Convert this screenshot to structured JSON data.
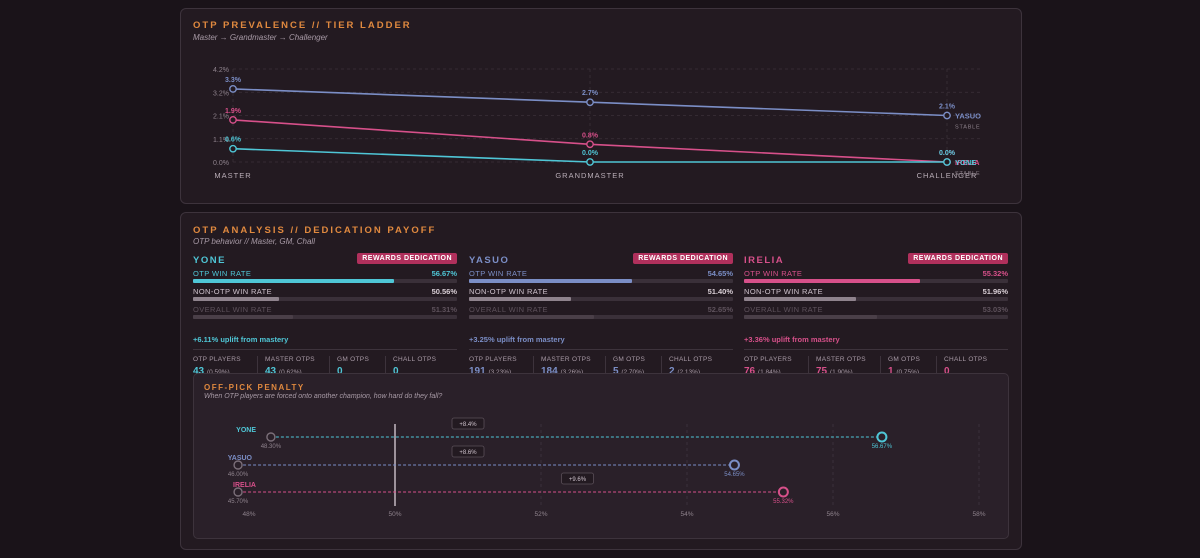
{
  "prevalence": {
    "title": "OTP PREVALENCE // TIER LADDER",
    "subtitle": "Master → Grandmaster → Challenger"
  },
  "analysis": {
    "title": "OTP ANALYSIS // DEDICATION PAYOFF",
    "subtitle": "OTP behavior // Master, GM, Chall",
    "row_labels": {
      "otp": "OTP WIN RATE",
      "non_otp": "NON-OTP WIN RATE",
      "overall": "OVERALL WIN RATE"
    },
    "stat_labels": [
      "OTP PLAYERS",
      "MASTER OTPS",
      "GM OTPS",
      "CHALL OTPS"
    ],
    "champions": [
      {
        "name": "YONE",
        "color": "#4fc6d6",
        "badge": "REWARDS DEDICATION",
        "otp_wr": "56.67%",
        "non_otp_wr": "50.56%",
        "overall_wr": "51.31%",
        "otp_value": 56.67,
        "non_otp_value": 50.56,
        "overall_value": 51.31,
        "uplift": "+6.11% uplift from mastery",
        "stats": [
          {
            "value": "43",
            "pct": "(0.59%)"
          },
          {
            "value": "43",
            "pct": "(0.62%)"
          },
          {
            "value": "0",
            "pct": ""
          },
          {
            "value": "0",
            "pct": ""
          }
        ]
      },
      {
        "name": "YASUO",
        "color": "#7b8ec6",
        "badge": "REWARDS DEDICATION",
        "otp_wr": "54.65%",
        "non_otp_wr": "51.40%",
        "overall_wr": "52.65%",
        "otp_value": 54.65,
        "non_otp_value": 51.4,
        "overall_value": 52.65,
        "uplift": "+3.25% uplift from mastery",
        "stats": [
          {
            "value": "191",
            "pct": "(3.23%)"
          },
          {
            "value": "184",
            "pct": "(3.26%)"
          },
          {
            "value": "5",
            "pct": "(2.70%)"
          },
          {
            "value": "2",
            "pct": "(2.13%)"
          }
        ]
      },
      {
        "name": "IRELIA",
        "color": "#d7508a",
        "badge": "REWARDS DEDICATION",
        "otp_wr": "55.32%",
        "non_otp_wr": "51.96%",
        "overall_wr": "53.03%",
        "otp_value": 55.32,
        "non_otp_value": 51.96,
        "overall_value": 53.03,
        "uplift": "+3.36% uplift from mastery",
        "stats": [
          {
            "value": "76",
            "pct": "(1.84%)"
          },
          {
            "value": "75",
            "pct": "(1.90%)"
          },
          {
            "value": "1",
            "pct": "(0.75%)"
          },
          {
            "value": "0",
            "pct": ""
          }
        ]
      }
    ]
  },
  "offpick": {
    "title": "OFF-PICK PENALTY",
    "subtitle": "When OTP players are forced onto another champion, how hard do they fall?"
  },
  "chart_data": [
    {
      "type": "line",
      "title": "OTP PREVALENCE // TIER LADDER",
      "categories": [
        "MASTER",
        "GRANDMASTER",
        "CHALLENGER"
      ],
      "yticks": [
        "0.0%",
        "1.1%",
        "2.1%",
        "3.2%",
        "4.2%"
      ],
      "ylim": [
        0,
        4.2
      ],
      "series": [
        {
          "name": "YASUO",
          "color": "#7b8ec6",
          "values": [
            3.3,
            2.7,
            2.1
          ],
          "labels": [
            "3.3%",
            "2.7%",
            "2.1%"
          ],
          "tag": "STABLE"
        },
        {
          "name": "IRELIA",
          "color": "#d7508a",
          "values": [
            1.9,
            0.8,
            0.0
          ],
          "labels": [
            "1.9%",
            "0.8%",
            "0.0%"
          ],
          "tag": ""
        },
        {
          "name": "YONE",
          "color": "#4fc6d6",
          "values": [
            0.6,
            0.0,
            0.0
          ],
          "labels": [
            "0.6%",
            "0.0%",
            "0.0%"
          ],
          "tag": "STABLE"
        }
      ]
    },
    {
      "type": "scatter",
      "title": "OFF-PICK PENALTY",
      "xlim": [
        48,
        58
      ],
      "xticks": [
        "48%",
        "50%",
        "52%",
        "54%",
        "56%",
        "58%"
      ],
      "reference_line": 50,
      "series": [
        {
          "name": "YONE",
          "color": "#4fc6d6",
          "off_pick": 48.3,
          "otp": 56.67,
          "off_label": "48.30%",
          "otp_label": "56.67%",
          "delta": "+8.4%"
        },
        {
          "name": "YASUO",
          "color": "#7b8ec6",
          "off_pick": 46.0,
          "otp": 54.65,
          "off_label": "46.00%",
          "otp_label": "54.65%",
          "delta": "+8.6%"
        },
        {
          "name": "IRELIA",
          "color": "#d7508a",
          "off_pick": 45.7,
          "otp": 55.32,
          "off_label": "45.70%",
          "otp_label": "55.32%",
          "delta": "+9.6%"
        }
      ]
    }
  ]
}
